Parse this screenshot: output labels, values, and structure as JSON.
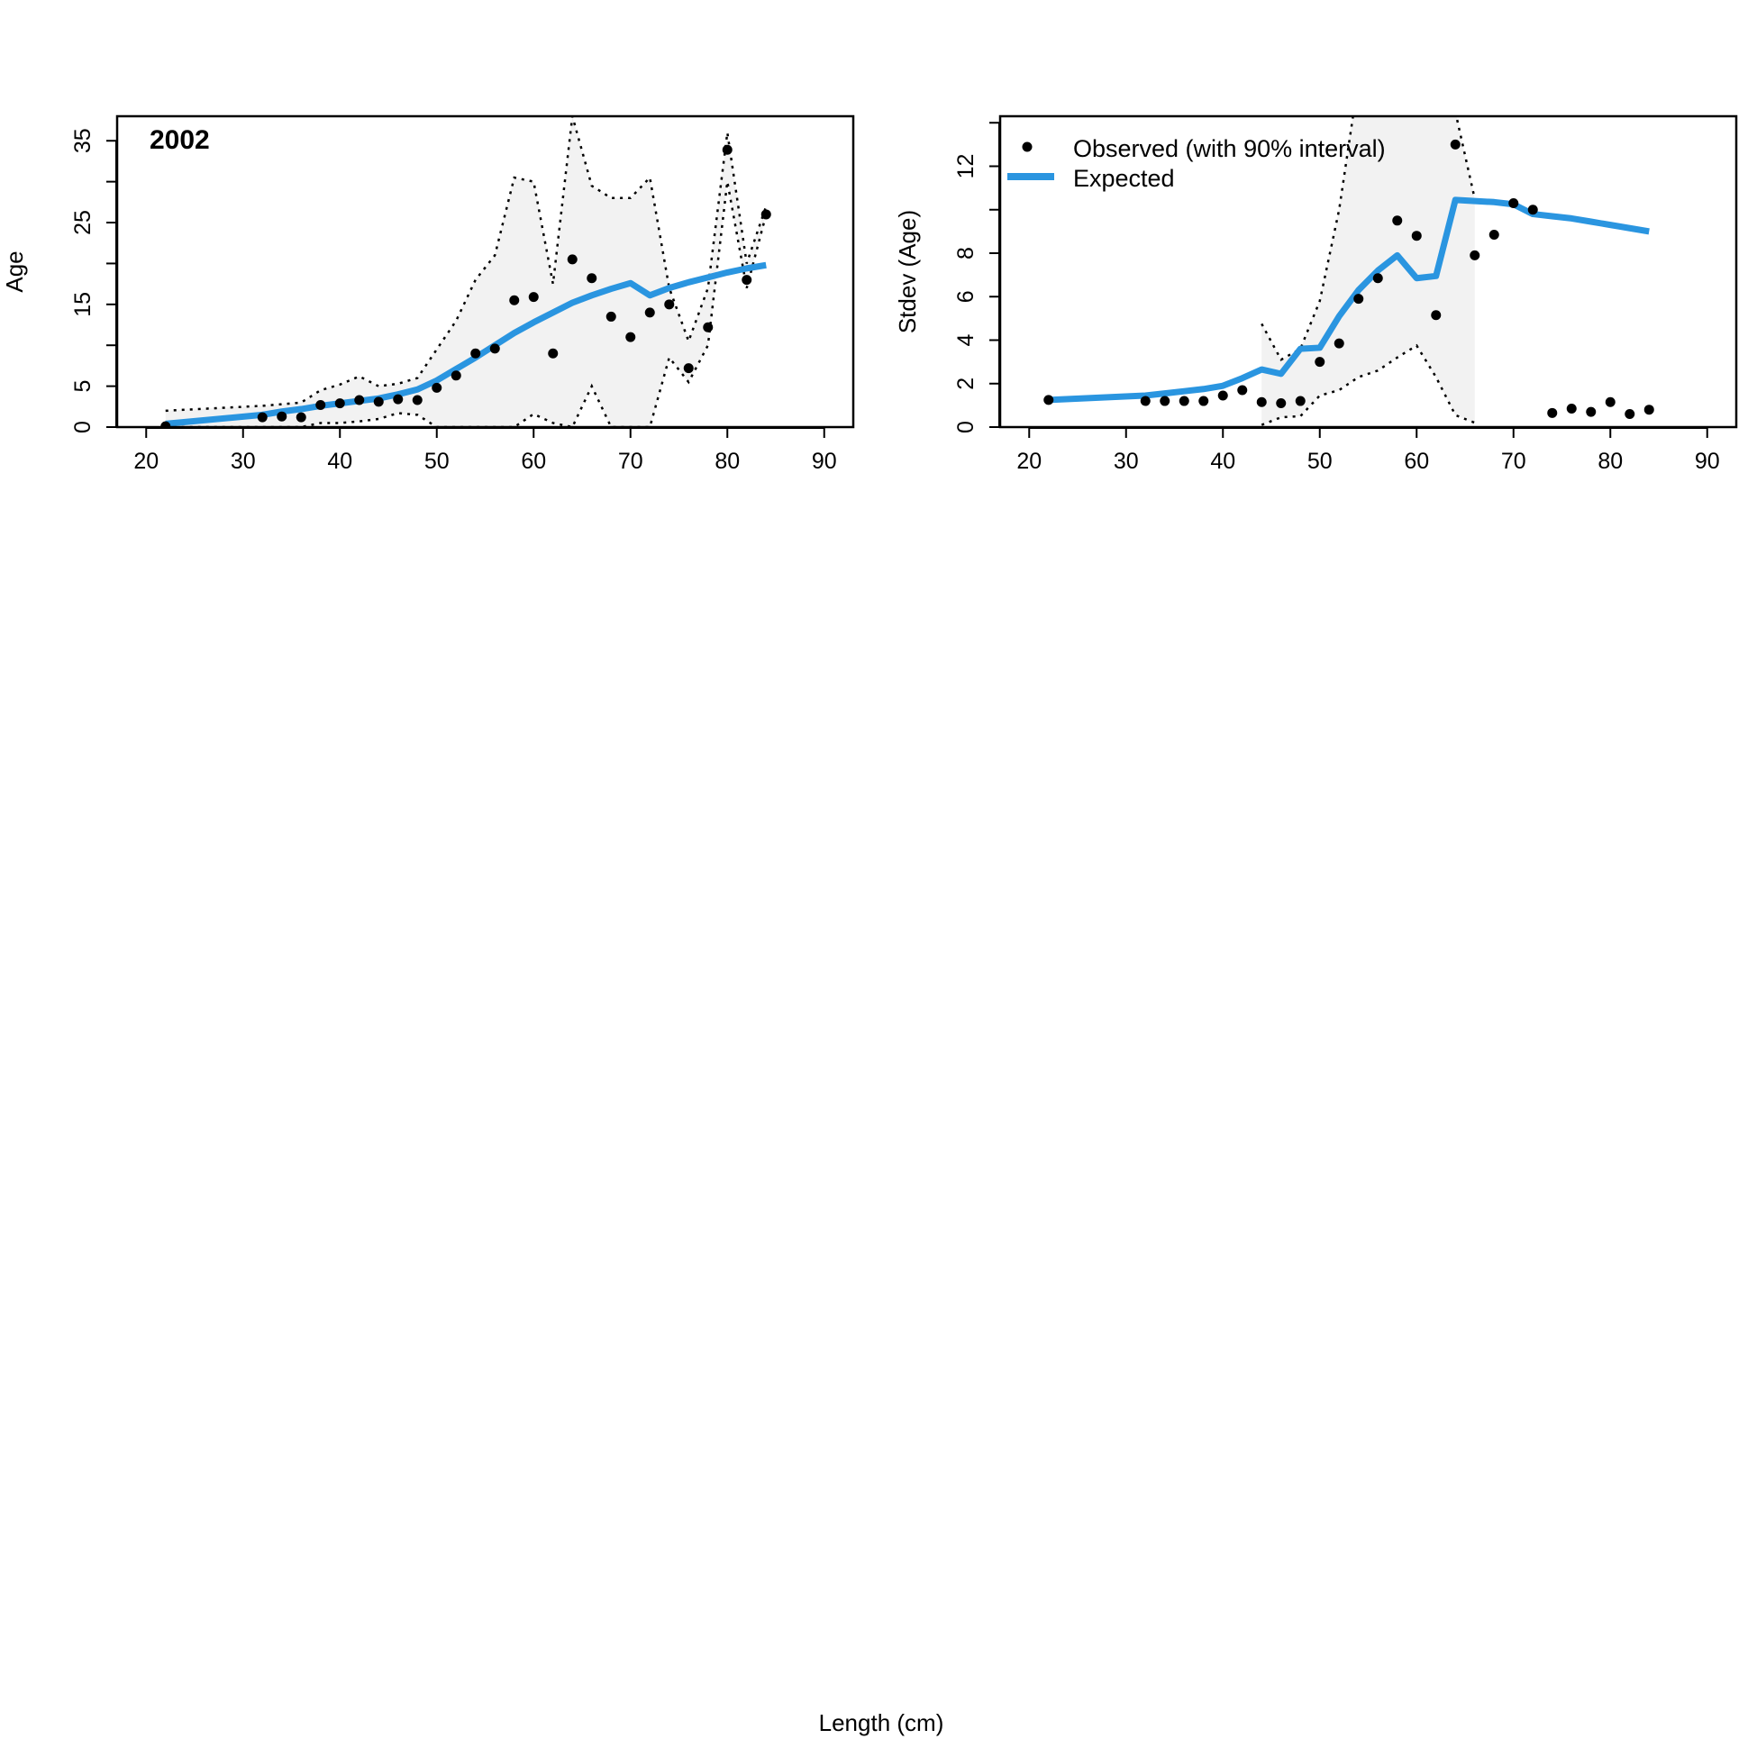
{
  "xlabel": "Length (cm)",
  "colors": {
    "expected": "#2A95E0",
    "band": "#F2F2F2",
    "points": "#000000"
  },
  "legend": {
    "observed": "Observed (with 90% interval)",
    "expected": "Expected",
    "placement": "top-left"
  },
  "chart_data": [
    {
      "type": "line",
      "panel_label": "2002",
      "ylabel": "Age",
      "xlim": [
        17,
        93
      ],
      "ylim": [
        0,
        38
      ],
      "xticks": [
        20,
        30,
        40,
        50,
        60,
        70,
        80,
        90
      ],
      "yticks": [
        0,
        5,
        10,
        15,
        20,
        25,
        30,
        35
      ],
      "yticklabels": [
        0,
        5,
        15,
        25,
        35
      ],
      "observed": {
        "x": [
          22,
          32,
          34,
          36,
          38,
          40,
          42,
          44,
          46,
          48,
          50,
          52,
          54,
          56,
          58,
          60,
          62,
          64,
          66,
          68,
          70,
          72,
          74,
          76,
          78,
          80,
          82,
          84
        ],
        "y": [
          0.1,
          1.2,
          1.3,
          1.2,
          2.7,
          2.9,
          3.3,
          3.1,
          3.4,
          3.3,
          4.8,
          6.3,
          9.0,
          9.6,
          15.5,
          15.9,
          9.0,
          20.5,
          18.2,
          13.5,
          11.0,
          14.0,
          15.0,
          7.2,
          12.2,
          33.9,
          18.0,
          26.0
        ]
      },
      "expected": {
        "x": [
          22,
          32,
          34,
          36,
          38,
          40,
          42,
          44,
          46,
          48,
          50,
          52,
          54,
          56,
          58,
          60,
          62,
          64,
          66,
          68,
          70,
          72,
          74,
          76,
          78,
          80,
          82,
          84
        ],
        "y": [
          0.4,
          1.5,
          1.9,
          2.2,
          2.6,
          2.9,
          3.2,
          3.5,
          4.0,
          4.6,
          5.7,
          7.1,
          8.5,
          10.0,
          11.5,
          12.8,
          14.0,
          15.2,
          16.1,
          16.9,
          17.6,
          16.1,
          17.0,
          17.7,
          18.3,
          18.9,
          19.4,
          19.8
        ]
      },
      "interval": {
        "x": [
          22,
          32,
          34,
          36,
          38,
          40,
          42,
          44,
          46,
          48,
          50,
          52,
          54,
          56,
          58,
          60,
          62,
          64,
          66,
          68,
          70,
          72,
          74,
          76,
          78,
          80,
          82,
          84
        ],
        "lower": [
          0,
          0,
          0,
          0,
          0.5,
          0.5,
          0.7,
          1.0,
          1.7,
          1.5,
          0,
          0,
          0,
          0,
          0,
          1.6,
          0.5,
          0,
          5.0,
          0,
          0,
          0,
          8.5,
          5.5,
          10.0,
          30.0,
          17.0,
          26.0
        ],
        "upper": [
          2.0,
          2.6,
          2.8,
          3.0,
          4.5,
          5.2,
          6.2,
          5.0,
          5.3,
          6.0,
          9.5,
          13.0,
          18.0,
          21.0,
          30.5,
          30.0,
          17.5,
          38.0,
          29.5,
          28.0,
          28.0,
          30.5,
          17.0,
          10.5,
          17.0,
          36.0,
          20.0,
          27.0
        ]
      }
    },
    {
      "type": "line",
      "panel_label": "",
      "ylabel": "Stdev (Age)",
      "xlim": [
        17,
        93
      ],
      "ylim": [
        0,
        14.3
      ],
      "xticks": [
        20,
        30,
        40,
        50,
        60,
        70,
        80,
        90
      ],
      "yticks": [
        0,
        2,
        4,
        6,
        8,
        10,
        12,
        14
      ],
      "yticklabels": [
        0,
        2,
        4,
        6,
        8,
        12
      ],
      "observed": {
        "x": [
          22,
          32,
          34,
          36,
          38,
          40,
          42,
          44,
          46,
          48,
          50,
          52,
          54,
          56,
          58,
          60,
          62,
          64,
          66,
          68,
          70,
          72,
          74,
          76,
          78,
          80,
          82,
          84
        ],
        "y": [
          1.25,
          1.2,
          1.2,
          1.2,
          1.2,
          1.45,
          1.7,
          1.15,
          1.1,
          1.2,
          3.0,
          3.85,
          5.9,
          6.85,
          9.5,
          8.8,
          5.15,
          13.0,
          7.9,
          8.85,
          10.3,
          10.0,
          0.65,
          0.85,
          0.7,
          1.15,
          0.6,
          0.8
        ]
      },
      "expected": {
        "x": [
          22,
          32,
          34,
          36,
          38,
          40,
          42,
          44,
          46,
          48,
          50,
          52,
          54,
          56,
          58,
          60,
          62,
          64,
          66,
          68,
          70,
          72,
          74,
          76,
          78,
          80,
          82,
          84
        ],
        "y": [
          1.25,
          1.45,
          1.55,
          1.65,
          1.75,
          1.9,
          2.25,
          2.65,
          2.45,
          3.6,
          3.65,
          5.1,
          6.3,
          7.2,
          7.9,
          6.85,
          6.95,
          10.45,
          10.4,
          10.35,
          10.25,
          9.8,
          9.7,
          9.6,
          9.45,
          9.3,
          9.15,
          9.0
        ]
      },
      "interval": {
        "x": [
          44,
          46,
          48,
          50,
          52,
          54,
          56,
          58,
          60,
          62,
          64,
          66
        ],
        "lower": [
          0.1,
          0.45,
          0.5,
          1.45,
          1.7,
          2.3,
          2.6,
          3.2,
          3.75,
          2.3,
          0.55,
          0.2
        ],
        "upper": [
          4.75,
          3.1,
          3.6,
          5.8,
          10.0,
          16.0,
          20.0,
          20.0,
          20.0,
          20.0,
          14.5,
          10.5
        ]
      }
    }
  ]
}
